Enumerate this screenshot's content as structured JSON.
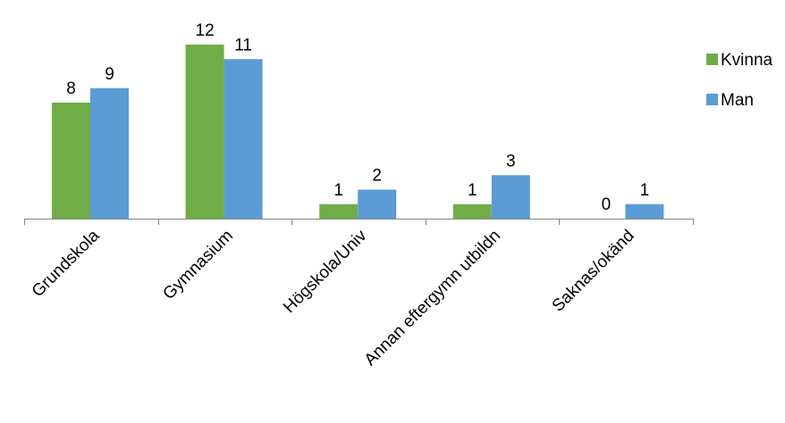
{
  "chart_data": {
    "type": "bar",
    "categories": [
      "Grundskola",
      "Gymnasium",
      "Högskola/Univ",
      "Annan eftergymn utbildn",
      "Saknas/okänd"
    ],
    "series": [
      {
        "name": "Kvinna",
        "values": [
          8,
          12,
          1,
          1,
          0
        ],
        "color": "#70ad47"
      },
      {
        "name": "Man",
        "values": [
          9,
          11,
          2,
          3,
          1
        ],
        "color": "#5b9bd5"
      }
    ],
    "ylim": [
      0,
      12
    ],
    "grid": false,
    "legend_position": "right",
    "data_labels": true
  }
}
